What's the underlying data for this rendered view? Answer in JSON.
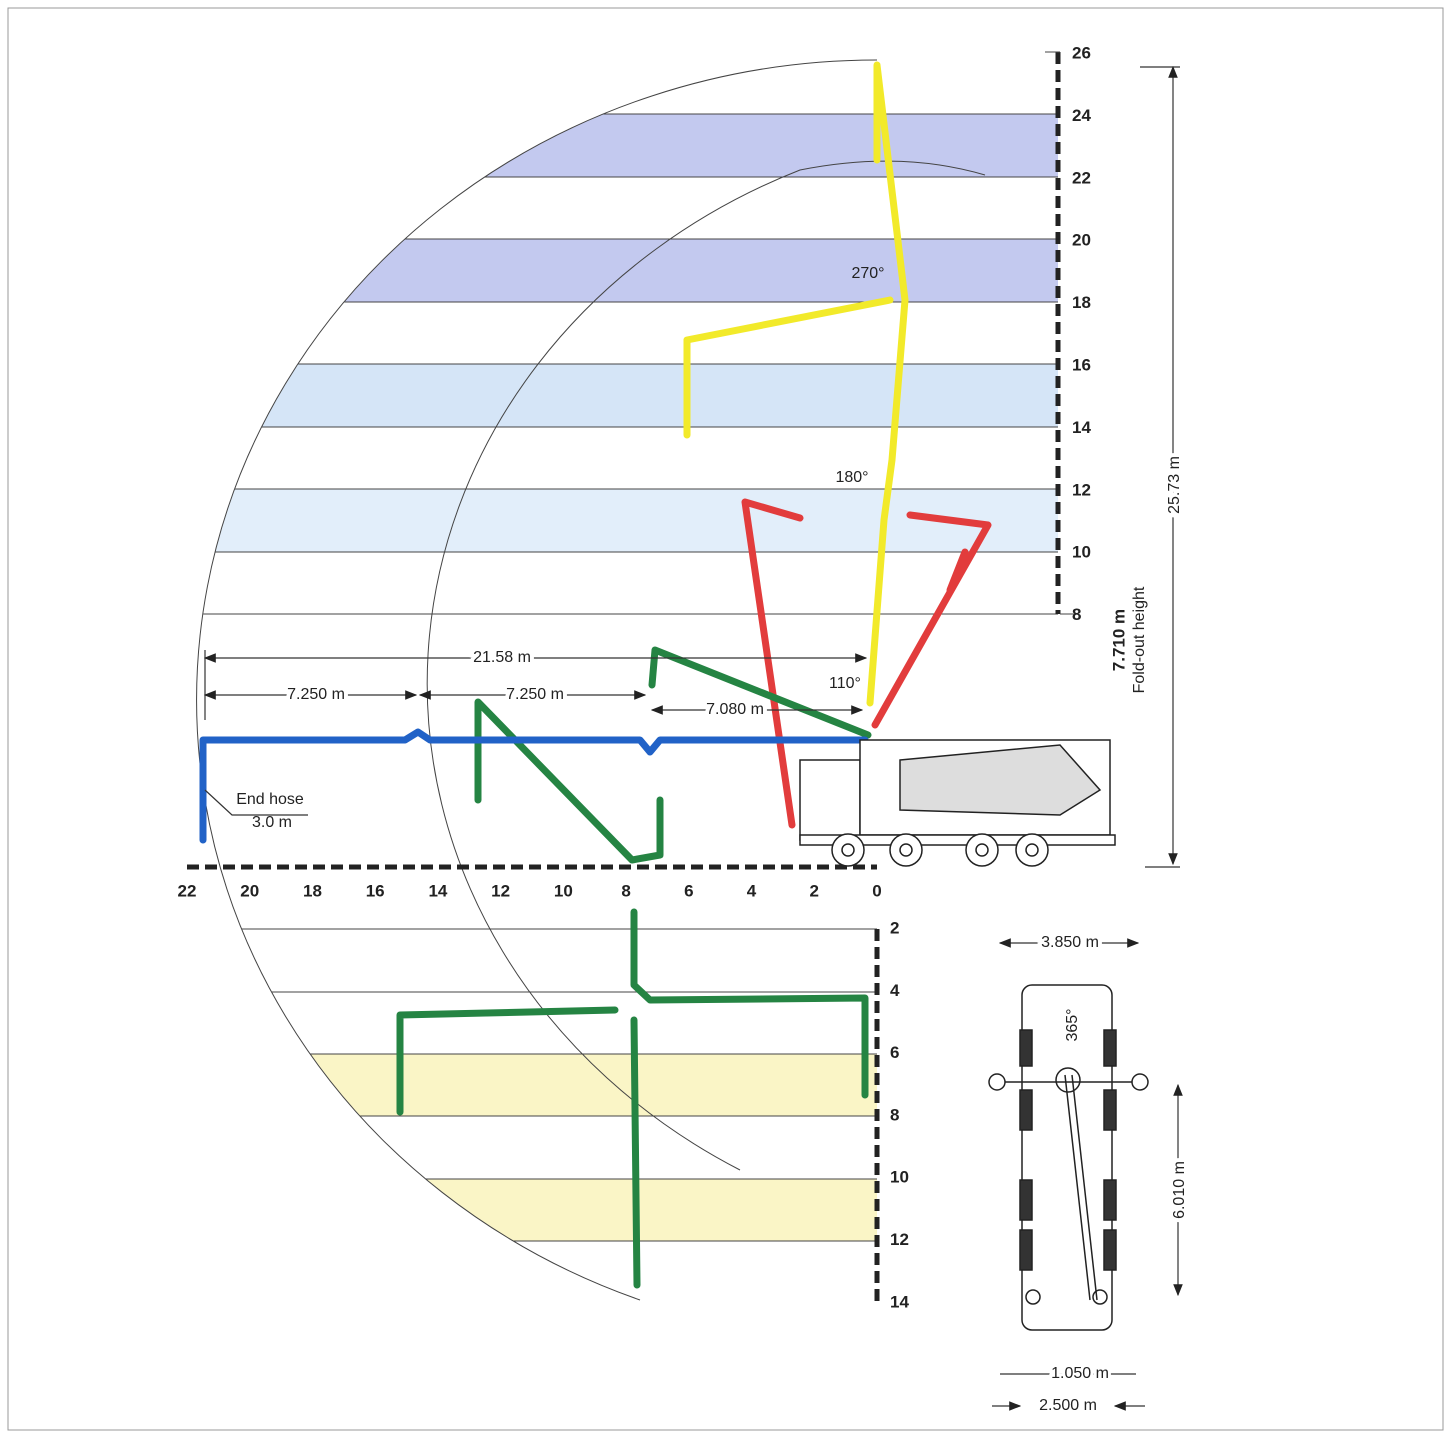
{
  "height_scale": [
    "26",
    "24",
    "22",
    "20",
    "18",
    "16",
    "14",
    "12",
    "10",
    "8"
  ],
  "reach_scale": [
    "22",
    "20",
    "18",
    "16",
    "14",
    "12",
    "10",
    "8",
    "6",
    "4",
    "2",
    "0"
  ],
  "depth_scale": [
    "2",
    "4",
    "6",
    "8",
    "10",
    "12",
    "14"
  ],
  "side_view": {
    "total_reach": "21.58 m",
    "section_1": "7.250 m",
    "section_2": "7.250 m",
    "section_3": "7.080 m",
    "angle_1": "110°",
    "angle_2": "180°",
    "angle_3": "270°",
    "end_hose_label": "End hose",
    "end_hose_length": "3.0 m",
    "max_height": "25.73 m",
    "fold_out_height": "7.710 m",
    "fold_out_label": "Fold-out height"
  },
  "top_view": {
    "outrigger_front_width": "3.850 m",
    "slew_angle": "365°",
    "outrigger_spacing": "6.010 m",
    "rear_outrigger_width": "1.050 m",
    "vehicle_width": "2.500 m"
  }
}
